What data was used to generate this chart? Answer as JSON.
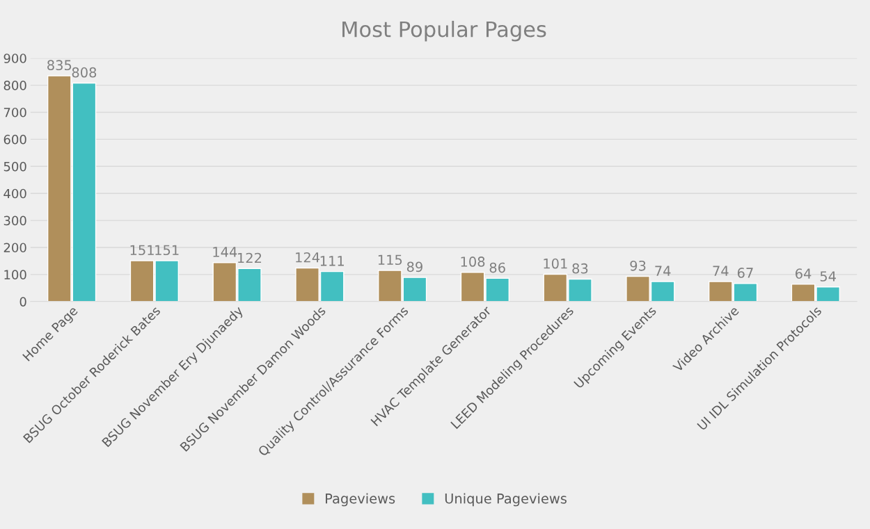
{
  "chart_data": {
    "type": "bar",
    "title": "Most Popular Pages",
    "categories": [
      "Home Page",
      "BSUG October Roderick Bates",
      "BSUG November Ery Djunaedy",
      "BSUG November Damon Woods",
      "Quality Control/Assurance Forms",
      "HVAC Template Generator",
      "LEED Modeling Procedures",
      "Upcoming Events",
      "Video Archive",
      "UI IDL Simulation Protocols"
    ],
    "series": [
      {
        "name": "Pageviews",
        "color": "#b08f5b",
        "values": [
          835,
          151,
          144,
          124,
          115,
          108,
          101,
          93,
          74,
          64
        ]
      },
      {
        "name": "Unique Pageviews",
        "color": "#42bfc1",
        "values": [
          808,
          151,
          122,
          111,
          89,
          86,
          83,
          74,
          67,
          54
        ]
      }
    ],
    "ylim": [
      0,
      900
    ],
    "yticks": [
      0,
      100,
      200,
      300,
      400,
      500,
      600,
      700,
      800,
      900
    ],
    "grid": "y",
    "legend": "bottom",
    "data_labels": true
  }
}
